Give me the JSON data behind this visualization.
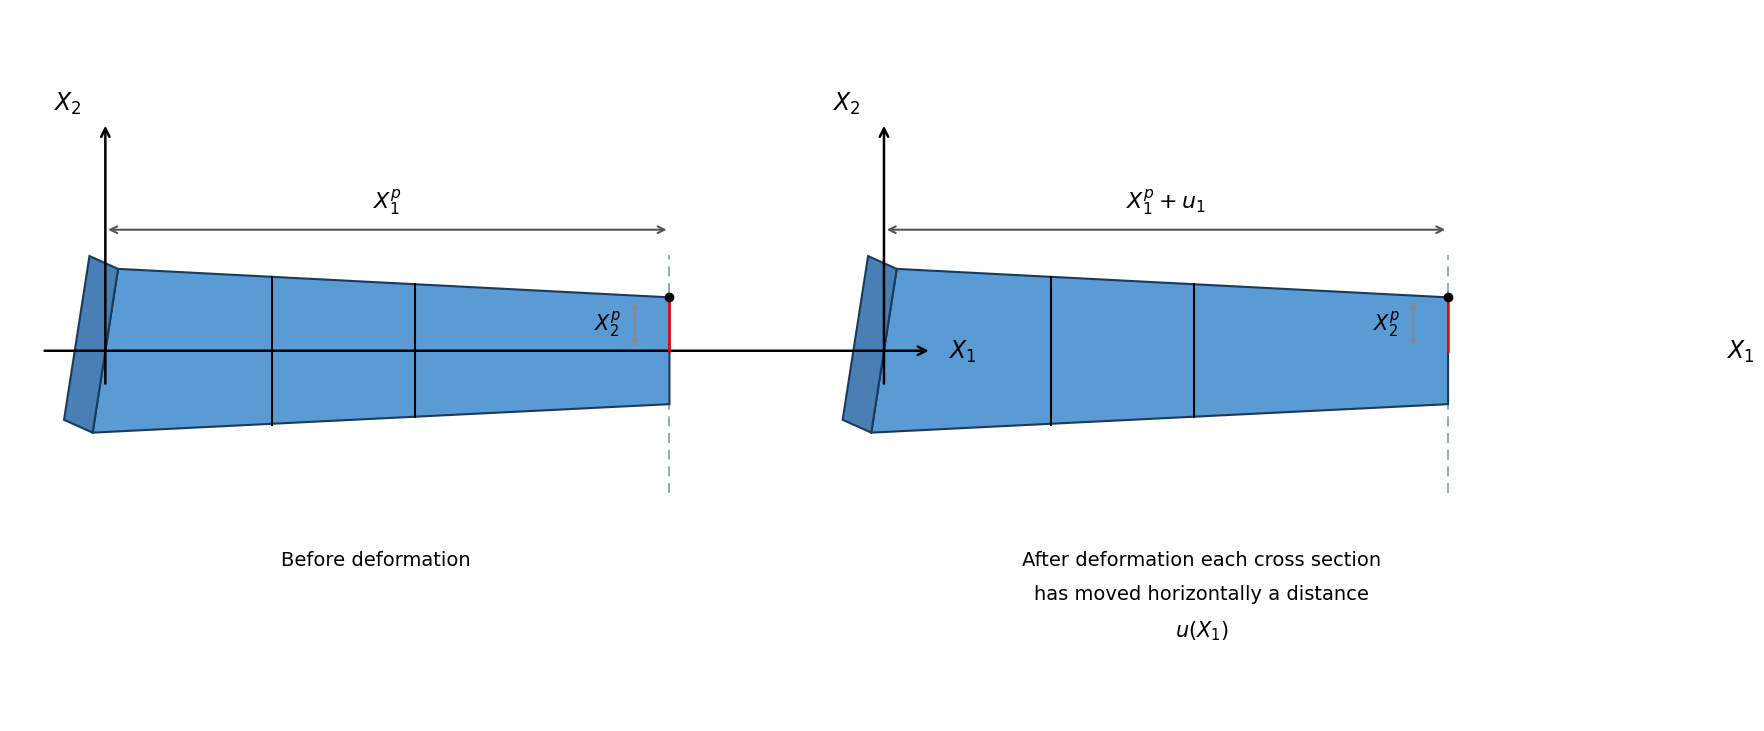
{
  "fig_width": 17.24,
  "fig_height": 7.12,
  "dpi": 100,
  "bg_color": "#ffffff",
  "beam_color": "#5b9bd5",
  "beam_edge_color": "#1a3a5c",
  "beam_side_color": "#4a7fb5",
  "text_fontsize": 14,
  "label_fontsize": 17,
  "annotation_fontsize": 15,
  "panels": [
    {
      "ox": 0.06,
      "oy": 0.52,
      "arrow_label": "$X_1^p$",
      "x2p_label": "$X_2^p$",
      "axis_x1": "$X_1$",
      "axis_x2": "$X_2$",
      "caption": [
        "Before deformation"
      ]
    },
    {
      "ox": 0.55,
      "oy": 0.52,
      "arrow_label": "$X_1^p + u_1$",
      "x2p_label": "$X_2^p$",
      "axis_x1": "$X_1$",
      "axis_x2": "$X_2$",
      "caption": [
        "After deformation each cross section",
        "has moved horizontally a distance",
        "$u(X_1)$"
      ]
    }
  ]
}
